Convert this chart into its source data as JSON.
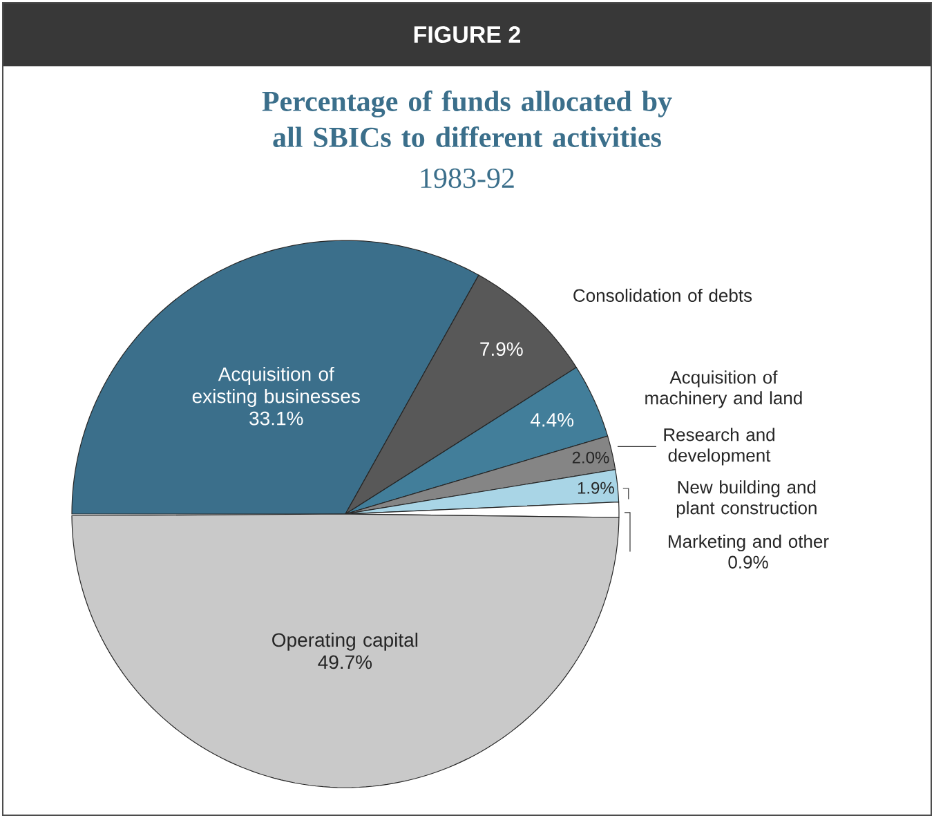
{
  "chart_data": {
    "type": "pie",
    "title": "Percentage of funds allocated by all SBICs to different activities",
    "subtitle": "1983-92",
    "annotations": [
      "FIGURE 2"
    ],
    "categories": [
      "Acquisition of existing businesses",
      "Consolidation of debts",
      "Acquisition of machinery and land",
      "Research and development",
      "New building and plant construction",
      "Marketing and other",
      "Operating capital"
    ],
    "values": [
      33.1,
      7.9,
      4.4,
      2.0,
      1.9,
      0.9,
      49.7
    ],
    "value_labels": [
      "33.1%",
      "7.9%",
      "4.4%",
      "2.0%",
      "1.9%",
      "0.9%",
      "49.7%"
    ],
    "legend": "right",
    "colors": [
      "#3b6f8b",
      "#585858",
      "#427e9a",
      "#858585",
      "#a9d5e6",
      "#ffffff",
      "#c9c9c9"
    ]
  }
}
